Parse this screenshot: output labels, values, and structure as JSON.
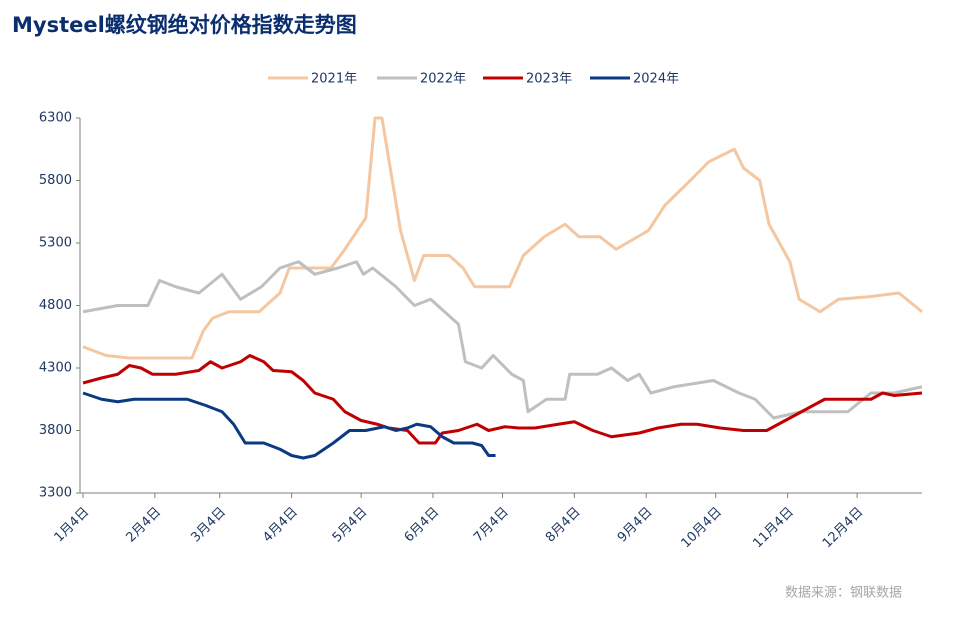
{
  "chart_data": {
    "type": "line",
    "title": "Mysteel螺纹钢绝对价格指数走势图",
    "source": "数据来源：钢联数据",
    "xlim": [
      0,
      362
    ],
    "xticks": [
      {
        "value": 0,
        "label": "1月4日"
      },
      {
        "value": 31,
        "label": "2月4日"
      },
      {
        "value": 59,
        "label": "3月4日"
      },
      {
        "value": 90,
        "label": "4月4日"
      },
      {
        "value": 120,
        "label": "5月4日"
      },
      {
        "value": 151,
        "label": "6月4日"
      },
      {
        "value": 181,
        "label": "7月4日"
      },
      {
        "value": 212,
        "label": "8月4日"
      },
      {
        "value": 243,
        "label": "9月4日"
      },
      {
        "value": 273,
        "label": "10月4日"
      },
      {
        "value": 304,
        "label": "11月4日"
      },
      {
        "value": 334,
        "label": "12月4日"
      }
    ],
    "ylim": [
      3300,
      6300
    ],
    "yticks": [
      3300,
      3800,
      4300,
      4800,
      5300,
      5800,
      6300
    ],
    "legend": "top",
    "series": [
      {
        "name": "2021年",
        "color": "#f4c7a1",
        "x": [
          0,
          10,
          20,
          47,
          52,
          56,
          63,
          76,
          85,
          89,
          107,
          113,
          122,
          126,
          129,
          137,
          143,
          147,
          158,
          164,
          169,
          184,
          190,
          199,
          208,
          214,
          223,
          230,
          244,
          251,
          262,
          270,
          281,
          285,
          292,
          296,
          305,
          309,
          318,
          326,
          339,
          352,
          362
        ],
        "values": [
          4470,
          4400,
          4380,
          4380,
          4600,
          4700,
          4750,
          4750,
          4900,
          5100,
          5100,
          5250,
          5500,
          6300,
          6300,
          5400,
          5000,
          5200,
          5200,
          5100,
          4950,
          4950,
          5200,
          5350,
          5450,
          5350,
          5350,
          5250,
          5400,
          5600,
          5800,
          5950,
          6050,
          5900,
          5800,
          5450,
          5150,
          4850,
          4750,
          4850,
          4870,
          4900,
          4750
        ]
      },
      {
        "name": "2022年",
        "color": "#bfbfbf",
        "x": [
          0,
          15,
          28,
          33,
          40,
          50,
          60,
          68,
          77,
          85,
          93,
          100,
          110,
          118,
          121,
          125,
          135,
          143,
          150,
          162,
          165,
          172,
          177,
          185,
          190,
          192,
          200,
          208,
          210,
          222,
          228,
          235,
          240,
          245,
          255,
          272,
          283,
          290,
          298,
          310,
          320,
          330,
          340,
          350,
          362
        ],
        "values": [
          4750,
          4800,
          4800,
          5000,
          4950,
          4900,
          5050,
          4850,
          4950,
          5100,
          5150,
          5050,
          5100,
          5150,
          5050,
          5100,
          4950,
          4800,
          4850,
          4650,
          4350,
          4300,
          4400,
          4250,
          4200,
          3950,
          4050,
          4050,
          4250,
          4250,
          4300,
          4200,
          4250,
          4100,
          4150,
          4200,
          4100,
          4050,
          3900,
          3950,
          3950,
          3950,
          4100,
          4100,
          4150
        ]
      },
      {
        "name": "2023年",
        "color": "#c00000",
        "x": [
          0,
          8,
          15,
          20,
          25,
          30,
          40,
          50,
          55,
          60,
          68,
          72,
          78,
          82,
          90,
          95,
          100,
          108,
          113,
          120,
          127,
          132,
          140,
          145,
          152,
          155,
          162,
          170,
          175,
          182,
          188,
          195,
          205,
          212,
          220,
          228,
          240,
          248,
          258,
          265,
          275,
          285,
          295,
          305,
          315,
          320,
          330,
          340,
          345,
          350,
          362
        ],
        "values": [
          4180,
          4220,
          4250,
          4320,
          4300,
          4250,
          4250,
          4280,
          4350,
          4300,
          4350,
          4400,
          4350,
          4280,
          4270,
          4200,
          4100,
          4050,
          3950,
          3880,
          3850,
          3820,
          3800,
          3700,
          3700,
          3780,
          3800,
          3850,
          3800,
          3830,
          3820,
          3820,
          3850,
          3870,
          3800,
          3750,
          3780,
          3820,
          3850,
          3850,
          3820,
          3800,
          3800,
          3900,
          4000,
          4050,
          4050,
          4050,
          4100,
          4080,
          4100
        ]
      },
      {
        "name": "2024年",
        "color": "#0b3a82",
        "x": [
          0,
          8,
          15,
          22,
          30,
          45,
          53,
          60,
          65,
          70,
          78,
          85,
          90,
          95,
          100,
          108,
          115,
          122,
          130,
          135,
          140,
          144,
          150,
          155,
          160,
          168,
          172,
          175,
          178
        ],
        "values": [
          4100,
          4050,
          4030,
          4050,
          4050,
          4050,
          4000,
          3950,
          3850,
          3700,
          3700,
          3650,
          3600,
          3580,
          3600,
          3700,
          3800,
          3800,
          3830,
          3800,
          3820,
          3850,
          3830,
          3750,
          3700,
          3700,
          3680,
          3600,
          3600
        ]
      }
    ]
  }
}
